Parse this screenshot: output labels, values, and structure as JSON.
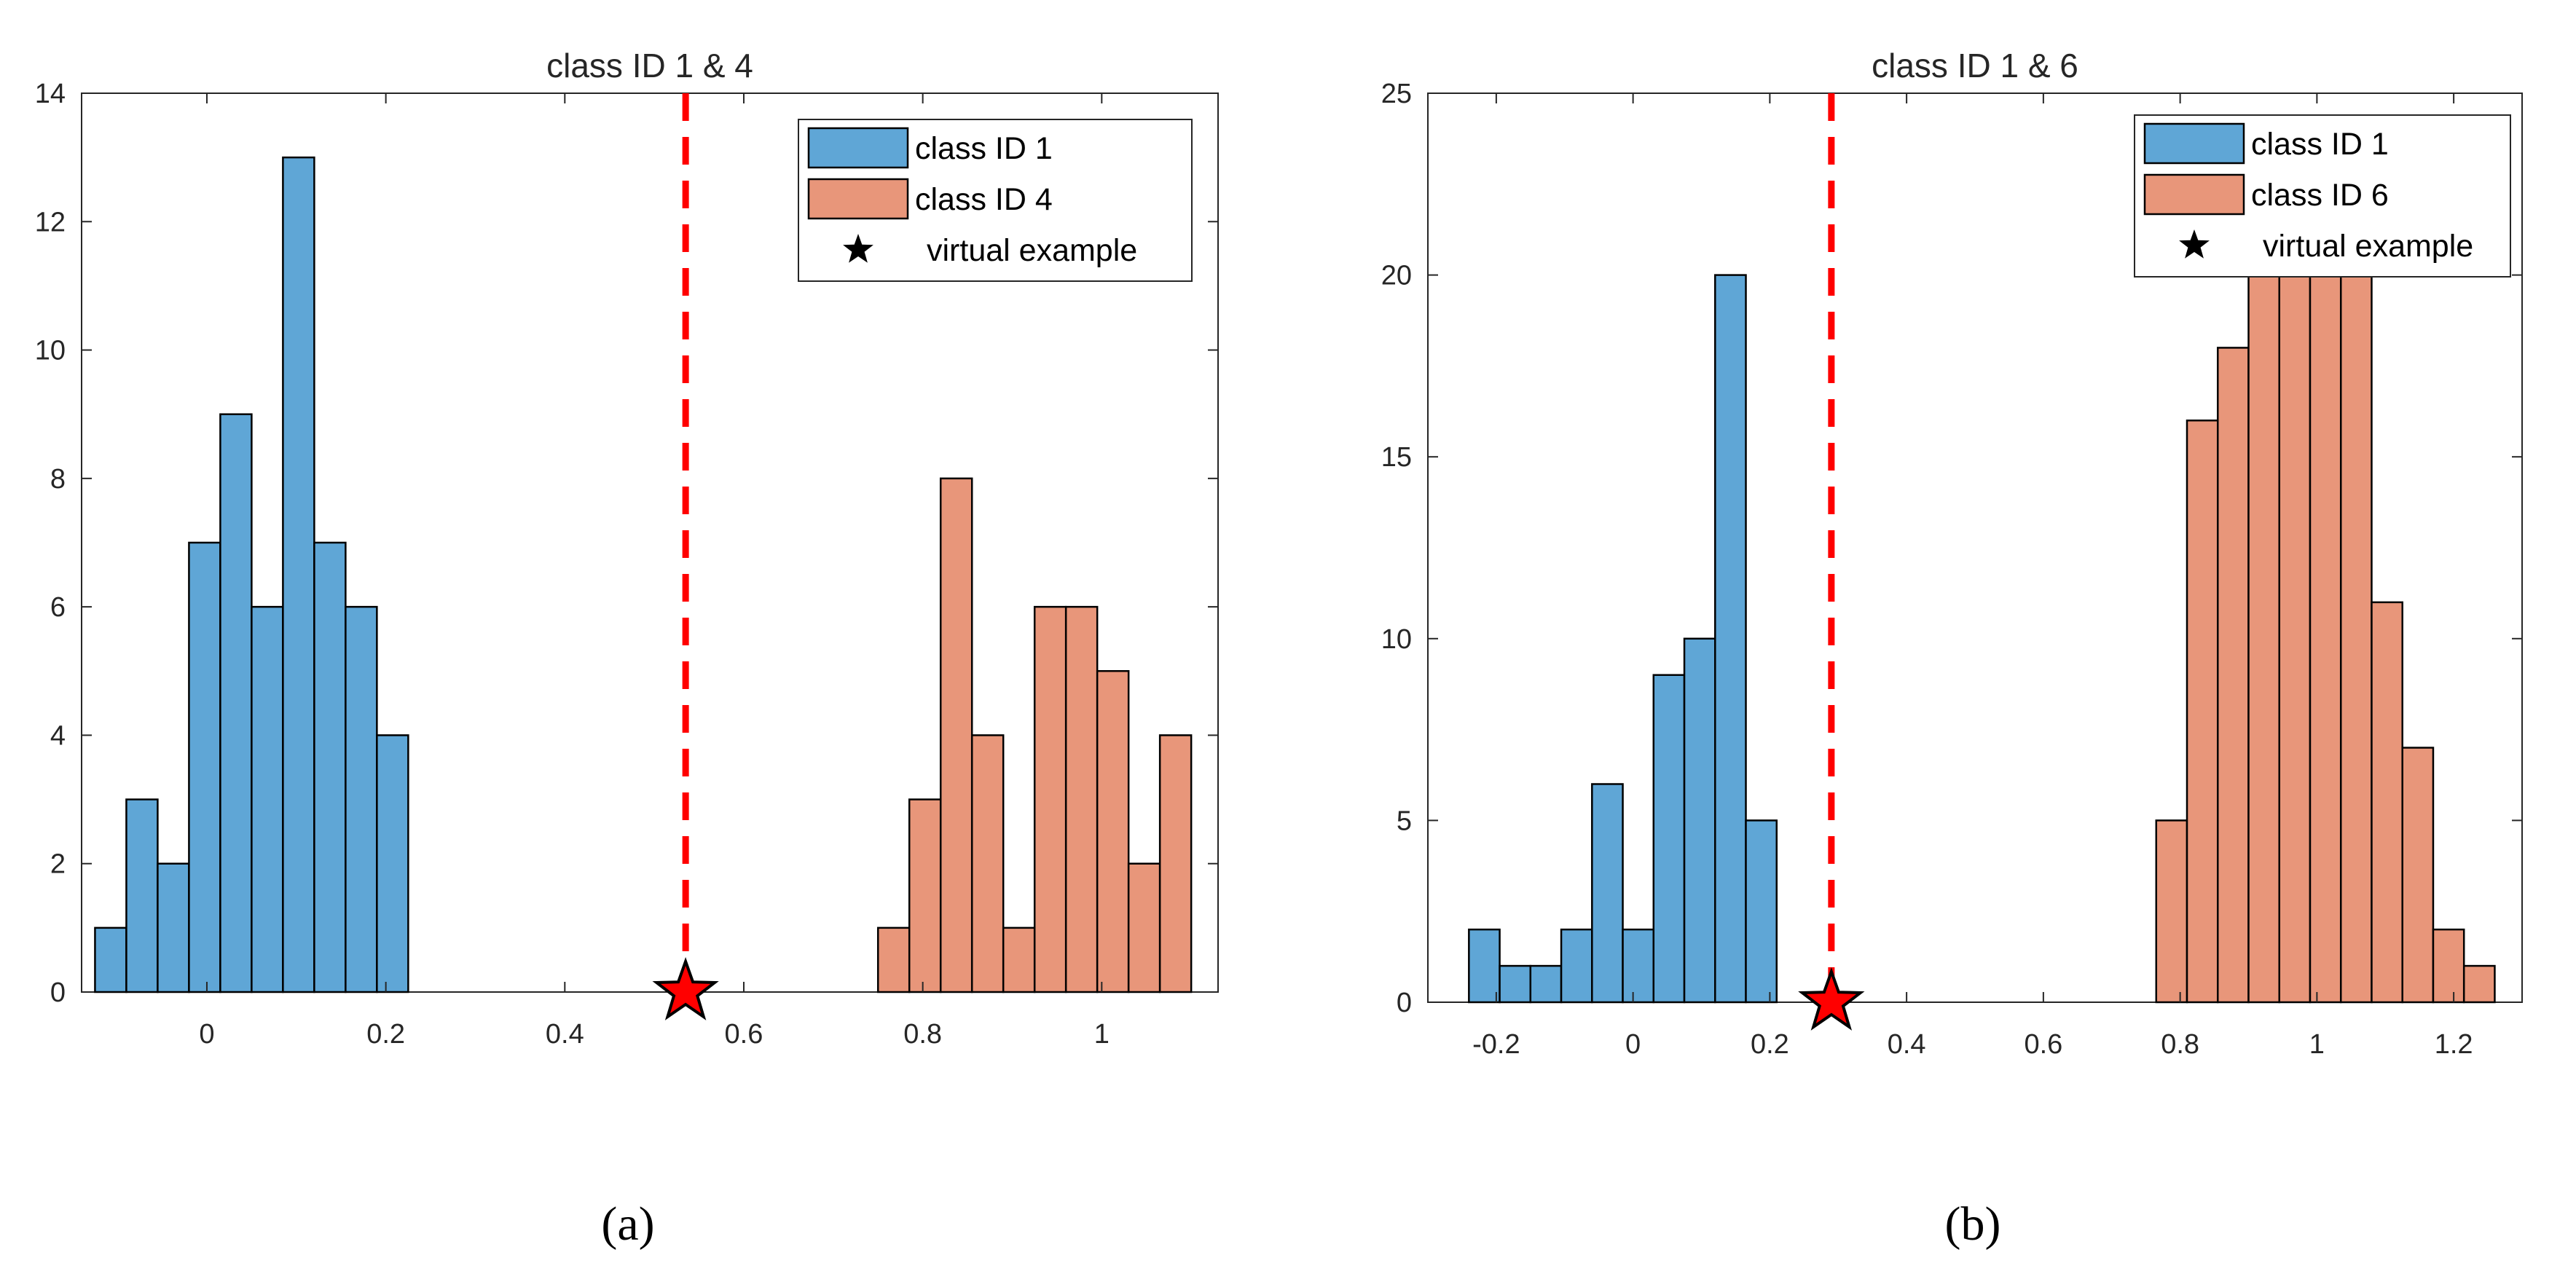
{
  "panels": [
    {
      "caption": "(a)",
      "chart_data": {
        "type": "bar",
        "subtype": "histogram",
        "title": "class ID 1 & 4",
        "xlabel": "",
        "ylabel": "",
        "xlim": [
          -0.14,
          1.13
        ],
        "ylim": [
          0,
          14
        ],
        "xticks": [
          0,
          0.2,
          0.4,
          0.6,
          0.8,
          1
        ],
        "xtick_labels": [
          "0",
          "0.2",
          "0.4",
          "0.6",
          "0.8",
          "1"
        ],
        "yticks": [
          0,
          2,
          4,
          6,
          8,
          10,
          12,
          14
        ],
        "ytick_labels": [
          "0",
          "2",
          "4",
          "6",
          "8",
          "10",
          "12",
          "14"
        ],
        "bin_width": 0.035,
        "series": [
          {
            "name": "class ID 1",
            "color": "#5fa6d6",
            "bin_start": -0.125,
            "values": [
              1,
              3,
              2,
              7,
              9,
              6,
              13,
              7,
              6,
              4
            ]
          },
          {
            "name": "class ID 4",
            "color": "#e8967a",
            "bin_start": 0.75,
            "values": [
              1,
              3,
              8,
              4,
              1,
              6,
              6,
              5,
              2,
              4
            ]
          }
        ],
        "boundary_x": 0.535,
        "boundary_color": "#ff0000",
        "virtual_example": {
          "name": "virtual example",
          "x": 0.535,
          "y": 0
        },
        "legend": [
          "class ID 1",
          "class ID 4",
          "virtual example"
        ],
        "legend_position": "top-right"
      }
    },
    {
      "caption": "(b)",
      "chart_data": {
        "type": "bar",
        "subtype": "histogram",
        "title": "class ID 1 & 6",
        "xlabel": "",
        "ylabel": "",
        "xlim": [
          -0.3,
          1.3
        ],
        "ylim": [
          0,
          25
        ],
        "xticks": [
          -0.2,
          0,
          0.2,
          0.4,
          0.6,
          0.8,
          1,
          1.2
        ],
        "xtick_labels": [
          "-0.2",
          "0",
          "0.2",
          "0.4",
          "0.6",
          "0.8",
          "1",
          "1.2"
        ],
        "yticks": [
          0,
          5,
          10,
          15,
          20,
          25
        ],
        "ytick_labels": [
          "0",
          "5",
          "10",
          "15",
          "20",
          "25"
        ],
        "bin_width": 0.045,
        "series": [
          {
            "name": "class ID 1",
            "color": "#5fa6d6",
            "bin_start": -0.24,
            "values": [
              2,
              1,
              1,
              2,
              6,
              2,
              9,
              10,
              20,
              5
            ]
          },
          {
            "name": "class ID 6",
            "color": "#e8967a",
            "bin_start": 0.765,
            "values": [
              5,
              16,
              18,
              20,
              20,
              20,
              20,
              11,
              7,
              2,
              1
            ]
          }
        ],
        "boundary_x": 0.29,
        "boundary_color": "#ff0000",
        "virtual_example": {
          "name": "virtual example",
          "x": 0.29,
          "y": 0
        },
        "legend": [
          "class ID 1",
          "class ID 6",
          "virtual example"
        ],
        "legend_position": "top-right"
      }
    }
  ]
}
